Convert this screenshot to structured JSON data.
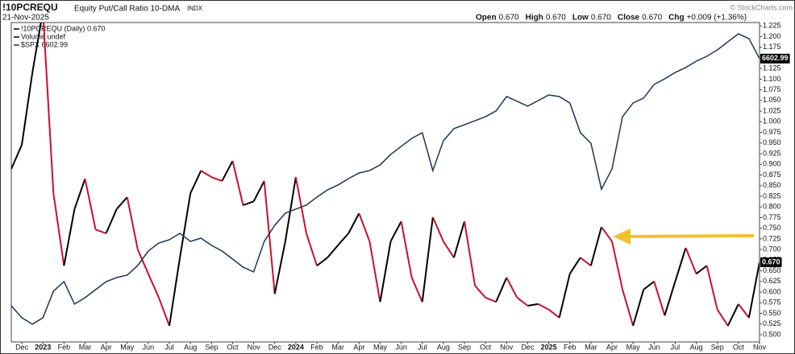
{
  "chart_data": {
    "type": "line",
    "symbol": "!10PCREQU",
    "title": "Equity Put/Call Ratio 10-DMA",
    "exchange": "INDX",
    "date": "21-Nov-2025",
    "source": "© StockCharts.com",
    "quote": [
      {
        "label": "Open",
        "value": "0.670"
      },
      {
        "label": "High",
        "value": "0.670"
      },
      {
        "label": "Low",
        "value": "0.670"
      },
      {
        "label": "Close",
        "value": "0.670"
      },
      {
        "label": "Chg",
        "value": "+0.009 (+1.36%)"
      }
    ],
    "legend": [
      "!10PCREQU (Daily) 0.670",
      "Volume undef",
      "$SPX 6602.99"
    ],
    "categories": [
      null,
      "Dec",
      null,
      "2023",
      null,
      "Feb",
      null,
      "Mar",
      null,
      "Apr",
      null,
      "May",
      null,
      "Jun",
      null,
      "Jul",
      null,
      "Aug",
      null,
      "Sep",
      null,
      "Oct",
      null,
      "Nov",
      null,
      "Dec",
      null,
      "2024",
      null,
      "Feb",
      null,
      "Mar",
      null,
      "Apr",
      null,
      "May",
      null,
      "Jun",
      null,
      "Jul",
      null,
      "Aug",
      null,
      "Sep",
      null,
      "Oct",
      null,
      "Nov",
      null,
      "Dec",
      null,
      "2025",
      null,
      "Feb",
      null,
      "Mar",
      null,
      "Apr",
      null,
      "May",
      null,
      "Jun",
      null,
      "Jul",
      null,
      "Aug",
      null,
      "Sep",
      null,
      "Oct",
      null,
      "Nov"
    ],
    "series": [
      {
        "name": "!10PCREQU",
        "up_color": "#000000",
        "down_color": "#c8102e",
        "last_label": "0.670",
        "values": [
          0.889,
          0.946,
          1.115,
          1.26,
          0.832,
          0.662,
          0.795,
          0.866,
          0.747,
          0.738,
          0.795,
          0.823,
          0.7,
          0.643,
          0.587,
          0.521,
          0.681,
          0.832,
          0.885,
          0.87,
          0.861,
          0.908,
          0.804,
          0.813,
          0.861,
          0.596,
          0.719,
          0.87,
          0.738,
          0.662,
          0.681,
          0.71,
          0.738,
          0.785,
          0.719,
          0.577,
          0.719,
          0.766,
          0.634,
          0.577,
          0.776,
          0.719,
          0.681,
          0.766,
          0.615,
          0.587,
          0.577,
          0.634,
          0.587,
          0.568,
          0.572,
          0.559,
          0.54,
          0.643,
          0.681,
          0.662,
          0.753,
          0.719,
          0.606,
          0.521,
          0.606,
          0.625,
          0.545,
          0.625,
          0.704,
          0.643,
          0.662,
          0.559,
          0.521,
          0.572,
          0.54,
          0.67
        ]
      },
      {
        "name": "$SPX",
        "color": "#1f3550",
        "axis": "y2",
        "values": [
          4088,
          3966,
          3900,
          3966,
          4236,
          4334,
          4105,
          4170,
          4252,
          4334,
          4375,
          4400,
          4498,
          4645,
          4727,
          4760,
          4825,
          4743,
          4776,
          4702,
          4645,
          4563,
          4481,
          4432,
          4743,
          4907,
          5030,
          5071,
          5112,
          5194,
          5267,
          5317,
          5382,
          5439,
          5464,
          5521,
          5628,
          5710,
          5791,
          5849,
          5464,
          5767,
          5890,
          5930,
          5971,
          6012,
          6070,
          6217,
          6168,
          6119,
          6176,
          6233,
          6217,
          6151,
          5849,
          5742,
          5275,
          5480,
          6012,
          6151,
          6201,
          6340,
          6397,
          6462,
          6512,
          6577,
          6626,
          6692,
          6774,
          6855,
          6806,
          6602.99
        ]
      }
    ],
    "ylim": [
      0.483,
      1.233
    ],
    "yticks": [
      {
        "value": 0.5,
        "label": "0.500"
      },
      {
        "value": 0.525,
        "label": "0.525"
      },
      {
        "value": 0.55,
        "label": "0.550"
      },
      {
        "value": 0.575,
        "label": "0.575"
      },
      {
        "value": 0.6,
        "label": "0.600"
      },
      {
        "value": 0.625,
        "label": "0.625"
      },
      {
        "value": 0.65,
        "label": "0.650"
      },
      {
        "value": 0.675,
        "label": "0.675"
      },
      {
        "value": 0.7,
        "label": "0.700"
      },
      {
        "value": 0.725,
        "label": "0.725"
      },
      {
        "value": 0.75,
        "label": "0.750"
      },
      {
        "value": 0.775,
        "label": "0.775"
      },
      {
        "value": 0.8,
        "label": "0.800"
      },
      {
        "value": 0.825,
        "label": "0.825"
      },
      {
        "value": 0.85,
        "label": "0.850"
      },
      {
        "value": 0.875,
        "label": "0.875"
      },
      {
        "value": 0.9,
        "label": "0.900"
      },
      {
        "value": 0.925,
        "label": "0.925"
      },
      {
        "value": 0.95,
        "label": "0.950"
      },
      {
        "value": 0.975,
        "label": "0.975"
      },
      {
        "value": 1.0,
        "label": "1.000"
      },
      {
        "value": 1.025,
        "label": "1.025"
      },
      {
        "value": 1.05,
        "label": "1.050"
      },
      {
        "value": 1.075,
        "label": "1.075"
      },
      {
        "value": 1.1,
        "label": "1.100"
      },
      {
        "value": 1.125,
        "label": "1.125"
      },
      {
        "value": 1.15,
        "label": "1.150"
      },
      {
        "value": 1.175,
        "label": "1.175"
      },
      {
        "value": 1.2,
        "label": "1.200"
      },
      {
        "value": 1.225,
        "label": "1.225"
      }
    ],
    "y2lim": [
      3720,
      6970
    ]
  }
}
